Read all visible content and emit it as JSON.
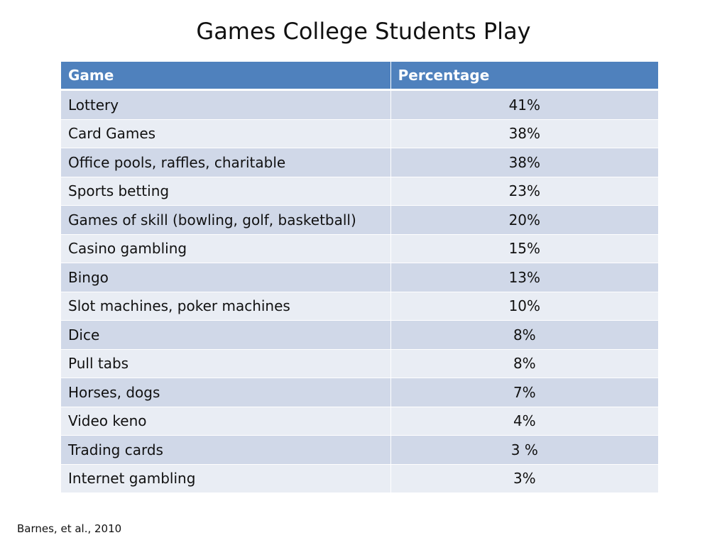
{
  "slide": {
    "title": "Games College Students Play",
    "citation": "Barnes, et al., 2010"
  },
  "table": {
    "headers": [
      "Game",
      "Percentage"
    ],
    "rows": [
      {
        "game": "Lottery",
        "percentage": "41%"
      },
      {
        "game": "Card Games",
        "percentage": "38%"
      },
      {
        "game": "Office pools, raffles, charitable",
        "percentage": "38%"
      },
      {
        "game": "Sports betting",
        "percentage": "23%"
      },
      {
        "game": "Games of skill (bowling, golf, basketball)",
        "percentage": "20%"
      },
      {
        "game": "Casino gambling",
        "percentage": "15%"
      },
      {
        "game": "Bingo",
        "percentage": "13%"
      },
      {
        "game": "Slot machines, poker machines",
        "percentage": "10%"
      },
      {
        "game": "Dice",
        "percentage": "8%"
      },
      {
        "game": "Pull tabs",
        "percentage": "8%"
      },
      {
        "game": "Horses, dogs",
        "percentage": "7%"
      },
      {
        "game": "Video keno",
        "percentage": "4%"
      },
      {
        "game": "Trading cards",
        "percentage": "3 %"
      },
      {
        "game": "Internet gambling",
        "percentage": "3%"
      }
    ]
  },
  "colors": {
    "header_bg": "#4f81bd",
    "header_text": "#ffffff",
    "row_odd_bg": "#d0d8e8",
    "row_even_bg": "#e9edf4"
  }
}
